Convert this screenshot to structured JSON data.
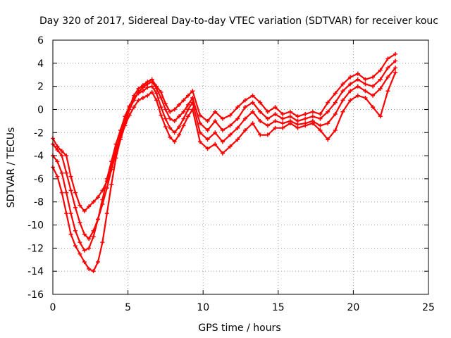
{
  "chart_data": {
    "type": "scatter",
    "title": "Day 320 of 2017, Sidereal Day-to-day VTEC variation (SDTVAR) for receiver kouc",
    "xlabel": "GPS time / hours",
    "ylabel": "SDTVAR / TECUs",
    "xlim": [
      0,
      25
    ],
    "ylim": [
      -16,
      6
    ],
    "x_ticks": [
      0,
      5,
      10,
      15,
      20,
      25
    ],
    "y_ticks": [
      -16,
      -14,
      -12,
      -10,
      -8,
      -6,
      -4,
      -2,
      0,
      2,
      4,
      6
    ],
    "grid": true,
    "marker": "plus",
    "color": "#ff0000",
    "series": [
      {
        "x": [
          0.0,
          0.3,
          0.6,
          0.9,
          1.2,
          1.5,
          1.8,
          2.1,
          2.4,
          2.7,
          3.0,
          3.3,
          3.6,
          3.9,
          4.2,
          4.5,
          4.8,
          5.1,
          5.4,
          5.7,
          6.0,
          6.3,
          6.6,
          6.9,
          7.2,
          7.5,
          7.8,
          8.1,
          8.4,
          8.7,
          9.0,
          9.3
        ],
        "y": [
          -2.5,
          -3.2,
          -3.6,
          -4.0,
          -5.8,
          -7.2,
          -8.3,
          -8.8,
          -8.4,
          -8.0,
          -7.6,
          -7.0,
          -6.2,
          -5.0,
          -3.5,
          -2.2,
          -1.0,
          0.2,
          1.2,
          1.8,
          2.1,
          2.4,
          2.6,
          2.0,
          1.5,
          0.5,
          -0.2,
          0.0,
          0.4,
          0.8,
          1.2,
          1.6
        ]
      },
      {
        "x": [
          0.0,
          0.3,
          0.6,
          0.9,
          1.2,
          1.5,
          1.8,
          2.1,
          2.4,
          2.7,
          3.0,
          3.3,
          3.6,
          3.9,
          4.2,
          4.5,
          4.8,
          5.1,
          5.4,
          5.7,
          6.0,
          6.3,
          6.6,
          6.9,
          7.2,
          7.5,
          7.8,
          8.1,
          8.4,
          8.7,
          9.0,
          9.3
        ],
        "y": [
          -3.0,
          -3.5,
          -4.0,
          -5.5,
          -7.0,
          -8.5,
          -9.8,
          -10.8,
          -11.2,
          -10.5,
          -9.5,
          -8.2,
          -6.8,
          -5.2,
          -3.8,
          -2.4,
          -1.2,
          0.0,
          0.8,
          1.5,
          1.9,
          2.2,
          2.4,
          1.8,
          1.0,
          0.0,
          -0.8,
          -1.0,
          -0.6,
          -0.2,
          0.4,
          1.0
        ]
      },
      {
        "x": [
          0.0,
          0.3,
          0.6,
          0.9,
          1.2,
          1.5,
          1.8,
          2.1,
          2.4,
          2.7,
          3.0,
          3.3,
          3.6,
          3.9,
          4.2,
          4.5,
          4.8,
          5.1,
          5.4,
          5.7,
          6.0,
          6.3,
          6.6,
          6.9,
          7.2,
          7.5,
          7.8,
          8.1,
          8.4,
          8.7,
          9.0,
          9.3
        ],
        "y": [
          -4.0,
          -4.5,
          -5.5,
          -7.2,
          -9.0,
          -10.5,
          -11.5,
          -12.2,
          -12.0,
          -11.0,
          -9.5,
          -7.8,
          -6.0,
          -4.5,
          -3.0,
          -1.8,
          -0.6,
          0.3,
          1.0,
          1.4,
          1.6,
          1.9,
          2.0,
          1.4,
          0.2,
          -0.8,
          -1.6,
          -2.0,
          -1.5,
          -0.8,
          0.0,
          0.6
        ]
      },
      {
        "x": [
          0.0,
          0.3,
          0.6,
          0.9,
          1.2,
          1.5,
          1.8,
          2.1,
          2.4,
          2.7,
          3.0,
          3.3,
          3.6,
          3.9,
          4.2,
          4.5,
          4.8,
          5.1,
          5.4,
          5.7,
          6.0,
          6.3,
          6.6,
          6.9,
          7.2,
          7.5,
          7.8,
          8.1,
          8.4,
          8.7,
          9.0,
          9.3
        ],
        "y": [
          -5.0,
          -5.8,
          -7.2,
          -9.0,
          -10.8,
          -11.8,
          -12.5,
          -13.2,
          -13.8,
          -14.0,
          -13.2,
          -11.5,
          -9.0,
          -6.5,
          -4.2,
          -2.6,
          -1.4,
          -0.5,
          0.2,
          0.8,
          1.0,
          1.2,
          1.5,
          0.8,
          -0.5,
          -1.5,
          -2.4,
          -2.8,
          -2.2,
          -1.4,
          -0.6,
          0.0
        ]
      },
      {
        "x": [
          9.3,
          9.8,
          10.3,
          10.8,
          11.3,
          11.8,
          12.3,
          12.8,
          13.3,
          13.8,
          14.3,
          14.8,
          15.3,
          15.8,
          16.3,
          16.8,
          17.3,
          17.8,
          18.3,
          18.8,
          19.3,
          19.8,
          20.3,
          20.8,
          21.3,
          21.8,
          22.3,
          22.8
        ],
        "y": [
          1.6,
          -0.5,
          -1.0,
          -0.2,
          -0.8,
          -0.5,
          0.2,
          0.8,
          1.2,
          0.6,
          -0.2,
          0.2,
          -0.4,
          -0.2,
          -0.6,
          -0.4,
          -0.2,
          -0.4,
          0.6,
          1.4,
          2.2,
          2.8,
          3.1,
          2.6,
          2.8,
          3.4,
          4.4,
          4.8
        ]
      },
      {
        "x": [
          9.3,
          9.8,
          10.3,
          10.8,
          11.3,
          11.8,
          12.3,
          12.8,
          13.3,
          13.8,
          14.3,
          14.8,
          15.3,
          15.8,
          16.3,
          16.8,
          17.3,
          17.8,
          18.3,
          18.8,
          19.3,
          19.8,
          20.3,
          20.8,
          21.3,
          21.8,
          22.3,
          22.8
        ],
        "y": [
          1.0,
          -1.2,
          -1.8,
          -1.0,
          -1.8,
          -1.4,
          -0.8,
          0.2,
          0.6,
          -0.2,
          -0.8,
          -0.4,
          -0.8,
          -0.6,
          -1.0,
          -0.8,
          -0.6,
          -0.8,
          -0.2,
          0.6,
          1.6,
          2.2,
          2.6,
          2.2,
          2.0,
          2.6,
          3.6,
          4.2
        ]
      },
      {
        "x": [
          9.3,
          9.8,
          10.3,
          10.8,
          11.3,
          11.8,
          12.3,
          12.8,
          13.3,
          13.8,
          14.3,
          14.8,
          15.3,
          15.8,
          16.3,
          16.8,
          17.3,
          17.8,
          18.3,
          18.8,
          19.3,
          19.8,
          20.3,
          20.8,
          21.3,
          21.8,
          22.3,
          22.8
        ],
        "y": [
          0.6,
          -2.0,
          -2.6,
          -2.0,
          -2.8,
          -2.2,
          -1.6,
          -0.8,
          -0.2,
          -1.0,
          -1.4,
          -1.0,
          -1.2,
          -1.0,
          -1.3,
          -1.2,
          -1.0,
          -1.4,
          -1.2,
          -0.4,
          0.8,
          1.6,
          2.0,
          1.6,
          1.2,
          1.8,
          2.8,
          3.6
        ]
      },
      {
        "x": [
          9.3,
          9.8,
          10.3,
          10.8,
          11.3,
          11.8,
          12.3,
          12.8,
          13.3,
          13.8,
          14.3,
          14.8,
          15.3,
          15.8,
          16.3,
          16.8,
          17.3,
          17.8,
          18.3,
          18.8,
          19.3,
          19.8,
          20.3,
          20.8,
          21.3,
          21.8,
          22.3,
          22.8
        ],
        "y": [
          0.0,
          -2.8,
          -3.4,
          -3.0,
          -3.8,
          -3.2,
          -2.6,
          -1.8,
          -1.2,
          -2.2,
          -2.2,
          -1.6,
          -1.6,
          -1.2,
          -1.6,
          -1.4,
          -1.2,
          -1.8,
          -2.6,
          -1.8,
          -0.2,
          0.8,
          1.2,
          1.0,
          0.2,
          -0.6,
          1.6,
          3.2
        ]
      }
    ]
  }
}
